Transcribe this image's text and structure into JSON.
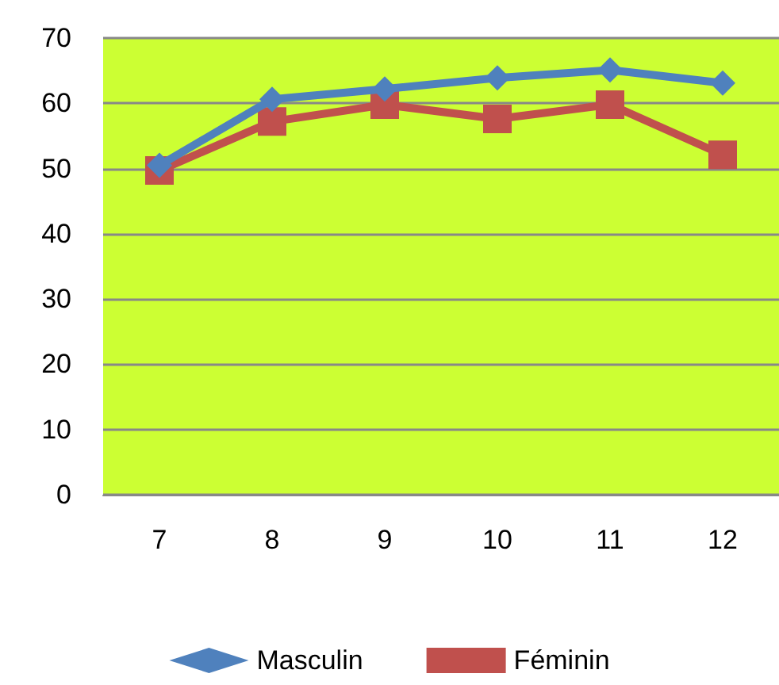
{
  "chart_data": {
    "type": "line",
    "categories": [
      "7",
      "8",
      "9",
      "10",
      "11",
      "12"
    ],
    "series": [
      {
        "name": "Masculin",
        "color": "#4f81bd",
        "marker": "diamond",
        "values": [
          50.5,
          60.6,
          62.2,
          63.9,
          65.1,
          63.1
        ]
      },
      {
        "name": "Féminin",
        "color": "#c0504d",
        "marker": "square",
        "values": [
          49.7,
          57.2,
          59.8,
          57.6,
          59.8,
          52.1
        ]
      }
    ],
    "ylim": [
      0,
      70
    ],
    "yticks": [
      0,
      10,
      20,
      30,
      40,
      50,
      60,
      70
    ],
    "grid": "y",
    "legend": "bottom",
    "line_style": "solid"
  }
}
